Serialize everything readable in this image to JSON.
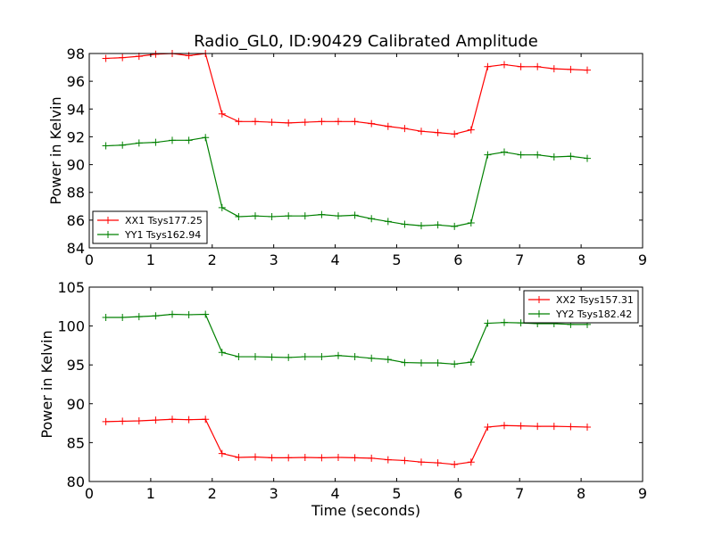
{
  "chart_data": [
    {
      "type": "line",
      "title": "Radio_GL0, ID:90429 Calibrated Amplitude",
      "xlabel": "",
      "ylabel": "Power in Kelvin",
      "xlim": [
        0,
        9
      ],
      "ylim": [
        84,
        98
      ],
      "xticks": [
        "0",
        "1",
        "2",
        "3",
        "4",
        "5",
        "6",
        "7",
        "8",
        "9"
      ],
      "yticks": [
        "84",
        "86",
        "88",
        "90",
        "92",
        "94",
        "96",
        "98"
      ],
      "grid": false,
      "legend_position": "lower-left",
      "x": [
        0.27,
        0.54,
        0.81,
        1.08,
        1.35,
        1.62,
        1.89,
        2.16,
        2.43,
        2.7,
        2.97,
        3.24,
        3.51,
        3.78,
        4.05,
        4.32,
        4.59,
        4.86,
        5.13,
        5.4,
        5.67,
        5.94,
        6.21,
        6.48,
        6.75,
        7.02,
        7.29,
        7.56,
        7.83,
        8.1
      ],
      "series": [
        {
          "name": "XX1 Tsys177.25",
          "color": "#ff0000",
          "values": [
            97.65,
            97.7,
            97.8,
            97.95,
            98.0,
            97.85,
            98.0,
            93.65,
            93.1,
            93.1,
            93.05,
            93.0,
            93.05,
            93.1,
            93.1,
            93.1,
            92.95,
            92.75,
            92.6,
            92.4,
            92.3,
            92.2,
            92.5,
            97.05,
            97.2,
            97.05,
            97.05,
            96.9,
            96.85,
            96.8
          ]
        },
        {
          "name": "YY1 Tsys162.94",
          "color": "#008000",
          "values": [
            91.35,
            91.4,
            91.55,
            91.6,
            91.75,
            91.75,
            91.95,
            86.9,
            86.25,
            86.3,
            86.25,
            86.3,
            86.3,
            86.4,
            86.3,
            86.35,
            86.1,
            85.9,
            85.7,
            85.6,
            85.65,
            85.55,
            85.8,
            90.7,
            90.9,
            90.7,
            90.7,
            90.55,
            90.6,
            90.45
          ]
        }
      ]
    },
    {
      "type": "line",
      "title": "",
      "xlabel": "Time (seconds)",
      "ylabel": "Power in Kelvin",
      "xlim": [
        0,
        9
      ],
      "ylim": [
        80,
        105
      ],
      "xticks": [
        "0",
        "1",
        "2",
        "3",
        "4",
        "5",
        "6",
        "7",
        "8",
        "9"
      ],
      "yticks": [
        "80",
        "85",
        "90",
        "95",
        "100",
        "105"
      ],
      "grid": false,
      "legend_position": "upper-right",
      "x": [
        0.27,
        0.54,
        0.81,
        1.08,
        1.35,
        1.62,
        1.89,
        2.16,
        2.43,
        2.7,
        2.97,
        3.24,
        3.51,
        3.78,
        4.05,
        4.32,
        4.59,
        4.86,
        5.13,
        5.4,
        5.67,
        5.94,
        6.21,
        6.48,
        6.75,
        7.02,
        7.29,
        7.56,
        7.83,
        8.1
      ],
      "series": [
        {
          "name": "XX2 Tsys157.31",
          "color": "#ff0000",
          "values": [
            87.7,
            87.75,
            87.8,
            87.9,
            88.0,
            87.95,
            88.0,
            83.6,
            83.1,
            83.15,
            83.05,
            83.05,
            83.1,
            83.05,
            83.1,
            83.05,
            83.0,
            82.8,
            82.7,
            82.5,
            82.4,
            82.2,
            82.5,
            87.0,
            87.2,
            87.15,
            87.1,
            87.1,
            87.05,
            87.0
          ]
        },
        {
          "name": "YY2 Tsys182.42",
          "color": "#008000",
          "values": [
            101.1,
            101.1,
            101.2,
            101.3,
            101.5,
            101.45,
            101.5,
            96.6,
            96.05,
            96.05,
            96.0,
            95.95,
            96.05,
            96.05,
            96.2,
            96.05,
            95.85,
            95.7,
            95.3,
            95.25,
            95.25,
            95.1,
            95.35,
            100.35,
            100.45,
            100.4,
            100.3,
            100.3,
            100.2,
            100.2
          ]
        }
      ]
    }
  ]
}
